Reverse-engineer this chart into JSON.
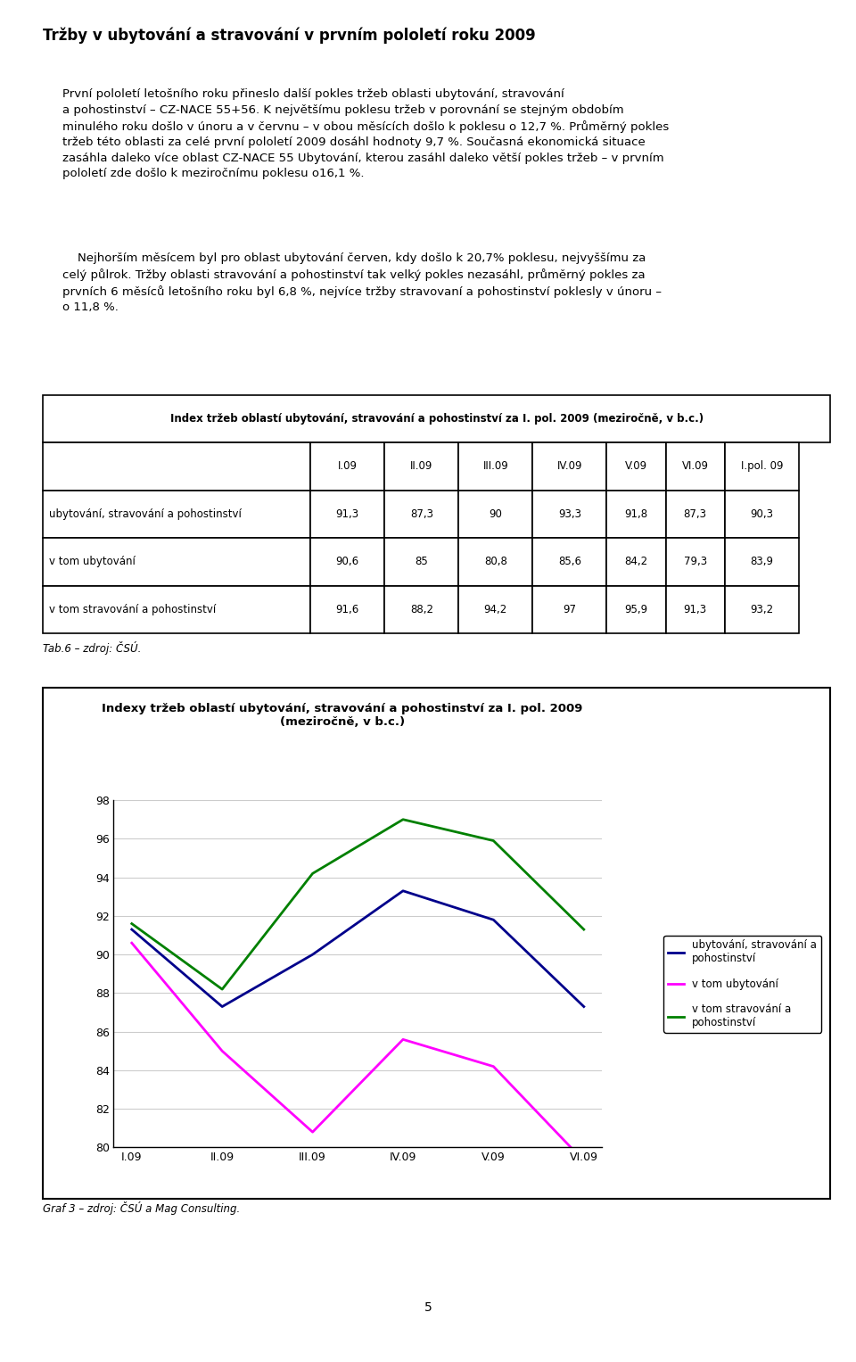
{
  "title": "Tržby v ubytování a stravování v prvním pololetí roku 2009",
  "paragraph1": "První pololetí letošního roku přineslo další pokles tržeb oblasti ubytování, stravování\na pohostinství – CZ-NACE 55+56. K největšímu poklesu tržeb v porovnání se stejným obdobím\nminulého roku došlo v únoru a v červnu – v obou měsících došlo k poklesu o 12,7 %. Průměrný pokles\ntržeb této oblasti za celé první pololetí 2009 dosáhl hodnoty 9,7 %. Současná ekonomická situace\nzasáhla daleko více oblast CZ-NACE 55 Ubytování, kterou zasáhl daleko větší pokles tržeb – v prvním\npololetí zde došlo k meziročnímu poklesu o16,1 %.",
  "paragraph2": "    Nejhorším měsícem byl pro oblast ubytování červen, kdy došlo k 20,7% poklesu, nejvyššímu za\ncelý půlrok. Tržby oblasti stravování a pohostinství tak velký pokles nezasáhl, průměrný pokles za\nprvních 6 měsíců letošního roku byl 6,8 %, nejvíce tržby stravovaní a pohostinství poklesly v únoru –\no 11,8 %.",
  "table_title": "Index tržeb oblastí ubytování, stravování a pohostinství za I. pol. 2009 (meziročně, v b.c.)",
  "table_col_headers": [
    "",
    "I.09",
    "II.09",
    "III.09",
    "IV.09",
    "V.09",
    "VI.09",
    "I.pol. 09"
  ],
  "table_rows": [
    [
      "ubytování, stravování a pohostinství",
      "91,3",
      "87,3",
      "90",
      "93,3",
      "91,8",
      "87,3",
      "90,3"
    ],
    [
      "v tom ubytování",
      "90,6",
      "85",
      "80,8",
      "85,6",
      "84,2",
      "79,3",
      "83,9"
    ],
    [
      "v tom stravování a pohostinství",
      "91,6",
      "88,2",
      "94,2",
      "97",
      "95,9",
      "91,3",
      "93,2"
    ]
  ],
  "table_caption": "Tab.6 – zdroj: ČSÚ.",
  "chart_title_line1": "Indexy tržeb oblastí ubytování, stravování a pohostinství za I. pol. 2009",
  "chart_title_line2": "(meziročně, v b.c.)",
  "x_labels": [
    "I.09",
    "II.09",
    "III.09",
    "IV.09",
    "V.09",
    "VI.09"
  ],
  "series1_label": "ubytování, stravování a\npohostinství",
  "series2_label": "v tom ubytování",
  "series3_label": "v tom stravování a\npohostinství",
  "series1_values": [
    91.3,
    87.3,
    90.0,
    93.3,
    91.8,
    87.3
  ],
  "series2_values": [
    90.6,
    85.0,
    80.8,
    85.6,
    84.2,
    79.3
  ],
  "series3_values": [
    91.6,
    88.2,
    94.2,
    97.0,
    95.9,
    91.3
  ],
  "series1_color": "#00008B",
  "series2_color": "#FF00FF",
  "series3_color": "#008000",
  "y_min": 80,
  "y_max": 98,
  "y_ticks": [
    80,
    82,
    84,
    86,
    88,
    90,
    92,
    94,
    96,
    98
  ],
  "chart_caption": "Graf 3 – zdroj: ČSÚ a Mag Consulting.",
  "page_number": "5",
  "background_color": "#ffffff"
}
